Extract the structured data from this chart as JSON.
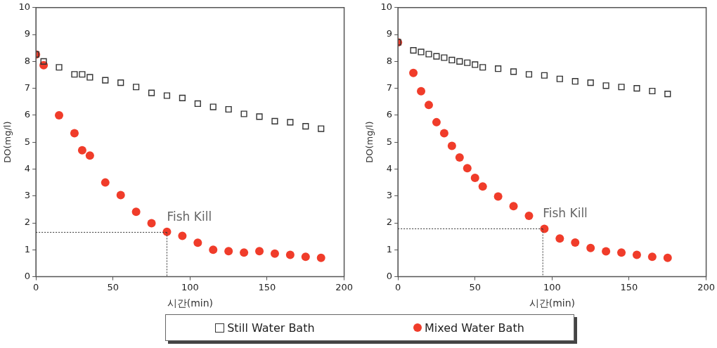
{
  "chart_data": [
    {
      "type": "scatter",
      "xlabel": "시간(min)",
      "ylabel": "DO(mg/l)",
      "xlim": [
        0,
        200
      ],
      "xticks": [
        0,
        50,
        100,
        150,
        200
      ],
      "ylim": [
        0,
        10
      ],
      "yticks": [
        0,
        1,
        2,
        3,
        4,
        5,
        6,
        7,
        8,
        9,
        10
      ],
      "grid": false,
      "legend": "bottom",
      "series": [
        {
          "name": "Still Water Bath",
          "color": "#333333",
          "marker": "square",
          "x": [
            0,
            5,
            15,
            25,
            30,
            35,
            45,
            55,
            65,
            75,
            85,
            95,
            105,
            115,
            125,
            135,
            145,
            155,
            165,
            175,
            185
          ],
          "values": [
            8.26,
            8.0,
            7.78,
            7.52,
            7.52,
            7.41,
            7.3,
            7.21,
            7.05,
            6.83,
            6.73,
            6.64,
            6.43,
            6.31,
            6.22,
            6.05,
            5.95,
            5.78,
            5.74,
            5.59,
            5.5
          ]
        },
        {
          "name": "Mixed Water Bath",
          "color": "#f03c2a",
          "marker": "circle",
          "x": [
            0,
            5,
            15,
            25,
            30,
            35,
            45,
            55,
            65,
            75,
            85,
            95,
            105,
            115,
            125,
            135,
            145,
            155,
            165,
            175,
            185
          ],
          "values": [
            8.26,
            7.86,
            6.0,
            5.33,
            4.7,
            4.5,
            3.5,
            3.03,
            2.41,
            1.99,
            1.67,
            1.52,
            1.26,
            1.0,
            0.95,
            0.9,
            0.95,
            0.86,
            0.81,
            0.74,
            0.7
          ]
        }
      ],
      "annotations": [
        {
          "text": "Fish Kill",
          "x": 85,
          "y": 1.65
        }
      ]
    },
    {
      "type": "scatter",
      "xlabel": "시간(min)",
      "ylabel": "DO(mg/l)",
      "xlim": [
        0,
        200
      ],
      "xticks": [
        0,
        50,
        100,
        150,
        200
      ],
      "ylim": [
        0,
        10
      ],
      "yticks": [
        0,
        1,
        2,
        3,
        4,
        5,
        6,
        7,
        8,
        9,
        10
      ],
      "grid": false,
      "series": [
        {
          "color": "#333333",
          "marker": "square",
          "x": [
            0,
            10,
            15,
            20,
            25,
            30,
            35,
            40,
            45,
            50,
            55,
            65,
            75,
            85,
            95,
            105,
            115,
            125,
            135,
            145,
            155,
            165,
            175
          ],
          "values": [
            8.71,
            8.41,
            8.35,
            8.27,
            8.19,
            8.14,
            8.05,
            8.0,
            7.95,
            7.88,
            7.78,
            7.73,
            7.62,
            7.52,
            7.48,
            7.35,
            7.26,
            7.21,
            7.1,
            7.05,
            7.0,
            6.9,
            6.79
          ]
        },
        {
          "color": "#f03c2a",
          "marker": "circle",
          "x": [
            0,
            10,
            15,
            20,
            25,
            30,
            35,
            40,
            45,
            50,
            55,
            65,
            75,
            85,
            95,
            105,
            115,
            125,
            135,
            145,
            155,
            165,
            175
          ],
          "values": [
            8.71,
            7.57,
            6.89,
            6.38,
            5.74,
            5.33,
            4.86,
            4.43,
            4.03,
            3.67,
            3.35,
            2.98,
            2.62,
            2.26,
            1.78,
            1.42,
            1.27,
            1.07,
            0.94,
            0.9,
            0.81,
            0.74,
            0.7
          ]
        }
      ],
      "annotations": [
        {
          "text": "Fish Kill",
          "x": 94,
          "y": 1.78
        }
      ]
    }
  ]
}
